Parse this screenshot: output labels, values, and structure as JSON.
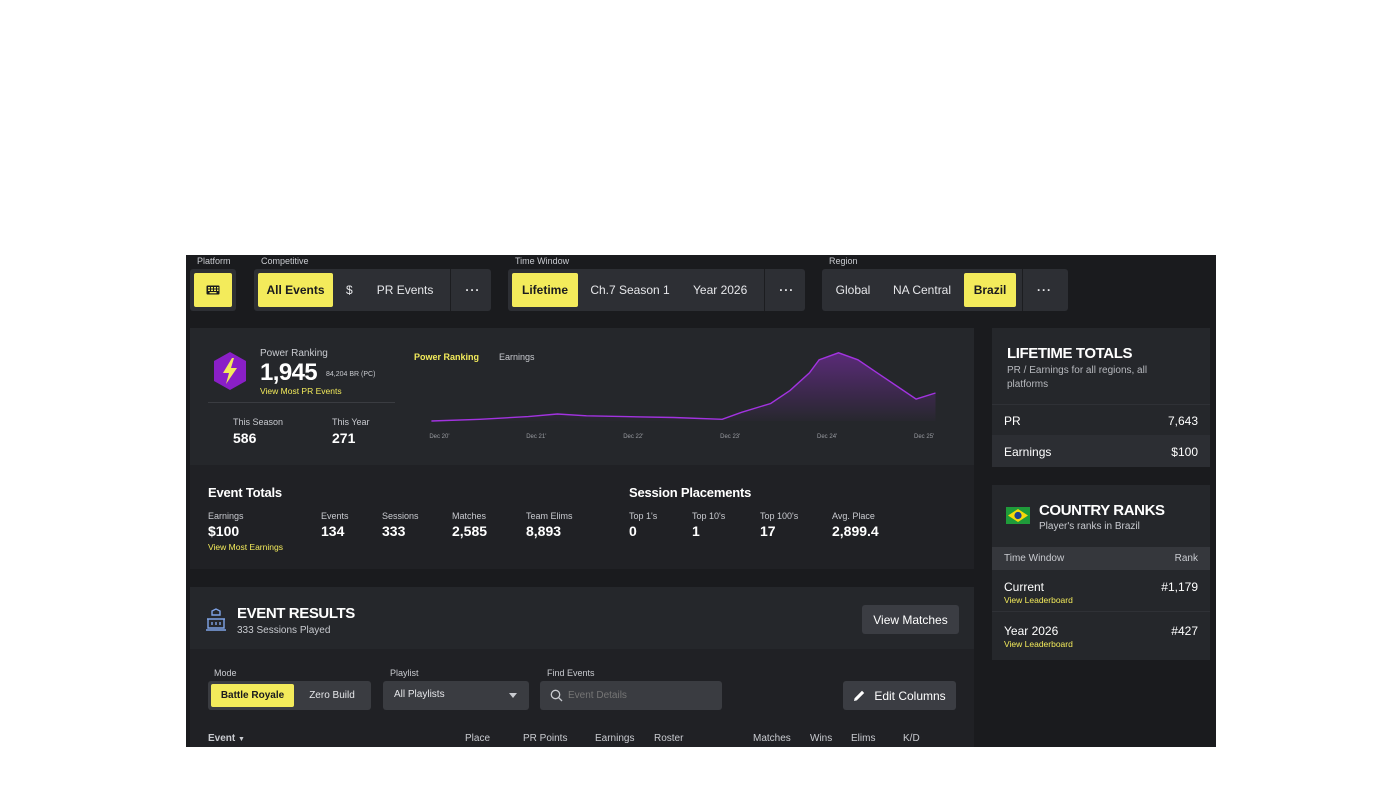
{
  "filters": {
    "platform": {
      "label": "Platform",
      "icon": "keyboard-icon"
    },
    "competitive": {
      "label": "Competitive",
      "options": [
        "All Events",
        "$",
        "PR Events"
      ],
      "more": "···"
    },
    "time_window": {
      "label": "Time Window",
      "options": [
        "Lifetime",
        "Ch.7 Season 1",
        "Year 2026"
      ],
      "more": "···"
    },
    "region": {
      "label": "Region",
      "options": [
        "Global",
        "NA Central",
        "Brazil"
      ],
      "more": "···"
    }
  },
  "power_ranking": {
    "label": "Power Ranking",
    "value": "1,945",
    "sub": "84,204 BR (PC)",
    "link": "View Most PR Events",
    "this_season_label": "This Season",
    "this_season": "586",
    "this_year_label": "This Year",
    "this_year": "271"
  },
  "chart_data": {
    "type": "area",
    "tabs": [
      "Power Ranking",
      "Earnings"
    ],
    "x_ticks": [
      "Dec 20'",
      "Dec 21'",
      "Dec 22'",
      "Dec 23'",
      "Dec 24'",
      "Dec 25'"
    ],
    "x": [
      2020.0,
      2020.5,
      2021.0,
      2021.3,
      2021.6,
      2022.0,
      2022.5,
      2023.0,
      2023.2,
      2023.5,
      2023.7,
      2023.9,
      2024.0,
      2024.2,
      2024.4,
      2024.6,
      2024.8,
      2025.0,
      2025.2
    ],
    "y": [
      0,
      2,
      5,
      8,
      6,
      5,
      4,
      2,
      10,
      20,
      35,
      55,
      70,
      78,
      70,
      55,
      40,
      25,
      32
    ],
    "color": "#9b2fd6"
  },
  "event_totals": {
    "title": "Event Totals",
    "earnings_label": "Earnings",
    "earnings": "$100",
    "earnings_link": "View Most Earnings",
    "events_label": "Events",
    "events": "134",
    "sessions_label": "Sessions",
    "sessions": "333",
    "matches_label": "Matches",
    "matches": "2,585",
    "elims_label": "Team Elims",
    "elims": "8,893"
  },
  "session_placements": {
    "title": "Session Placements",
    "top1_label": "Top 1's",
    "top1": "0",
    "top10_label": "Top 10's",
    "top10": "1",
    "top100_label": "Top 100's",
    "top100": "17",
    "avg_label": "Avg. Place",
    "avg": "2,899.4"
  },
  "event_results": {
    "title": "EVENT RESULTS",
    "sub": "333 Sessions Played",
    "view_matches": "View Matches",
    "mode_label": "Mode",
    "modes": [
      "Battle Royale",
      "Zero Build"
    ],
    "playlist_label": "Playlist",
    "playlist_value": "All Playlists",
    "find_label": "Find Events",
    "find_placeholder": "Event Details",
    "edit_columns": "Edit Columns",
    "columns": [
      "Event",
      "Place",
      "PR Points",
      "Earnings",
      "Roster",
      "Matches",
      "Wins",
      "Elims",
      "K/D"
    ]
  },
  "lifetime": {
    "title": "LIFETIME TOTALS",
    "sub": "PR / Earnings for all regions, all platforms",
    "pr_label": "PR",
    "pr": "7,643",
    "earnings_label": "Earnings",
    "earnings": "$100"
  },
  "country_ranks": {
    "title": "COUNTRY RANKS",
    "sub": "Player's ranks in Brazil",
    "col_time": "Time Window",
    "col_rank": "Rank",
    "rows": [
      {
        "label": "Current",
        "rank": "#1,179",
        "link": "View Leaderboard"
      },
      {
        "label": "Year 2026",
        "rank": "#427",
        "link": "View Leaderboard"
      }
    ]
  }
}
